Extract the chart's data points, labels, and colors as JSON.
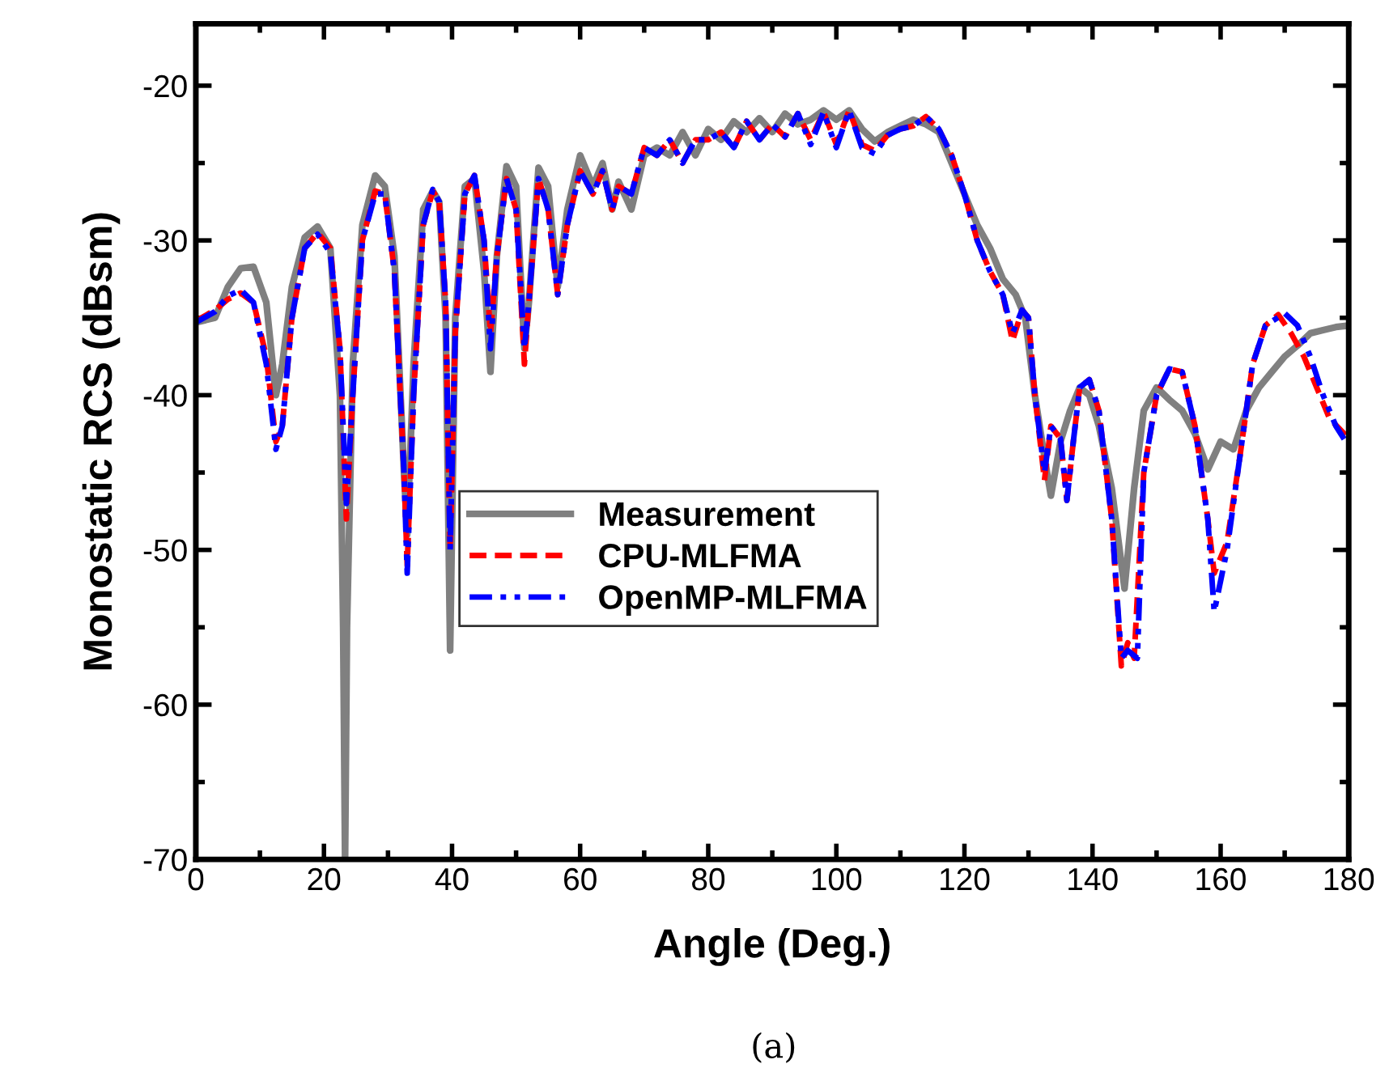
{
  "chart_data": {
    "type": "line",
    "xlabel": "Angle (Deg.)",
    "ylabel": "Monostatic RCS (dBsm)",
    "xlim": [
      0,
      180
    ],
    "xticks": [
      0,
      20,
      40,
      60,
      80,
      100,
      120,
      140,
      160,
      180
    ],
    "ylim": [
      -70,
      -16
    ],
    "yticks": [
      -70,
      -60,
      -50,
      -40,
      -30,
      -20
    ],
    "grid": false,
    "legend": "center",
    "annotations": [
      "(a)"
    ],
    "series": [
      {
        "name": "Measurement",
        "color": "#808080",
        "line_style": "solid",
        "x": [
          0,
          3,
          5,
          7,
          9,
          11,
          12.5,
          13.5,
          15,
          17,
          19,
          21,
          22.5,
          23,
          23.3,
          23.6,
          24.5,
          26,
          28,
          29.5,
          31,
          32.5,
          33,
          34,
          35.5,
          37,
          38,
          39,
          39.7,
          40.5,
          42,
          43.5,
          45,
          46,
          47,
          48.5,
          50,
          51.3,
          52,
          53.5,
          55,
          56.5,
          58,
          60,
          62,
          63.5,
          65,
          66,
          68,
          70,
          72,
          74,
          76,
          78,
          80,
          82,
          84,
          86,
          88,
          90,
          92,
          94,
          96,
          98,
          100,
          102,
          104,
          106,
          108,
          110,
          112,
          114,
          116,
          118,
          120,
          122,
          124,
          126,
          128,
          129.5,
          131,
          132.5,
          133.5,
          135,
          136.5,
          138,
          139.5,
          141,
          143,
          145,
          146.5,
          148,
          150,
          152,
          154,
          156,
          158,
          160,
          162,
          164,
          166,
          168,
          170,
          172,
          174,
          176,
          178,
          180
        ],
        "values": [
          -35.3,
          -35,
          -33,
          -31.8,
          -31.7,
          -34,
          -40,
          -38,
          -33,
          -29.8,
          -29.1,
          -30.5,
          -40,
          -55,
          -70,
          -55,
          -38,
          -29,
          -25.8,
          -26.5,
          -31,
          -45,
          -49,
          -38,
          -28,
          -26.8,
          -27.5,
          -35,
          -56.5,
          -35,
          -26.5,
          -26,
          -32,
          -38.5,
          -31,
          -25.2,
          -26.5,
          -37,
          -34,
          -25.3,
          -26.5,
          -33,
          -28,
          -24.5,
          -26.5,
          -25,
          -28,
          -26.2,
          -28,
          -24.5,
          -24,
          -24.5,
          -23,
          -24.5,
          -22.8,
          -23.5,
          -22.3,
          -23,
          -22.1,
          -23,
          -21.8,
          -22.5,
          -22.2,
          -21.6,
          -22.2,
          -21.6,
          -22.8,
          -23.6,
          -23,
          -22.6,
          -22.2,
          -22.5,
          -23,
          -25,
          -27,
          -29,
          -30.5,
          -32.5,
          -33.5,
          -35,
          -40,
          -44,
          -46.5,
          -43,
          -41,
          -39.5,
          -40,
          -42,
          -46,
          -52.5,
          -46,
          -41,
          -39.5,
          -40.3,
          -41,
          -42.5,
          -44.8,
          -43,
          -43.5,
          -41,
          -39.5,
          -38.5,
          -37.5,
          -36.8,
          -36,
          -35.8,
          -35.6,
          -35.5
        ]
      },
      {
        "name": "CPU-MLFMA",
        "color": "#ff0000",
        "line_style": "dashed",
        "x": [
          0,
          3,
          5,
          7,
          9,
          11,
          12.5,
          13.5,
          15,
          17,
          19,
          21,
          22.5,
          23.5,
          24.5,
          26,
          28,
          29.5,
          31,
          32.5,
          33,
          34,
          35.5,
          37,
          38,
          39,
          39.7,
          40.5,
          42,
          43.5,
          45,
          46,
          47,
          48.5,
          50,
          51.3,
          52,
          53.5,
          55,
          56.5,
          58,
          60,
          62,
          63.5,
          65,
          66,
          68,
          70,
          72,
          74,
          76,
          78,
          80,
          82,
          84,
          86,
          88,
          90,
          92,
          94,
          96,
          98,
          100,
          102,
          104,
          106,
          108,
          110,
          112,
          114,
          116,
          118,
          120,
          122,
          124,
          126,
          127.5,
          129,
          130,
          131,
          132.5,
          133.5,
          135,
          136,
          137,
          138,
          139.5,
          141,
          143,
          144.5,
          145.5,
          146.5,
          148,
          150,
          152,
          154,
          156,
          158,
          159,
          161,
          163,
          165,
          167,
          169,
          171,
          173,
          175,
          177,
          180
        ],
        "values": [
          -35.2,
          -34.5,
          -33.8,
          -33.4,
          -34,
          -37.5,
          -43,
          -42,
          -35,
          -30.5,
          -29.5,
          -30.5,
          -37,
          -48,
          -40,
          -30,
          -26.8,
          -27,
          -32,
          -45,
          -51,
          -40,
          -29,
          -26.8,
          -27.5,
          -34,
          -50,
          -36,
          -27,
          -25.8,
          -30,
          -36,
          -31,
          -26,
          -28,
          -38,
          -34,
          -26,
          -28,
          -33.5,
          -29,
          -25.5,
          -27,
          -25.5,
          -28,
          -26.5,
          -27,
          -24,
          -24.5,
          -23.5,
          -25,
          -23.5,
          -23.5,
          -23,
          -24,
          -22.3,
          -23.5,
          -22.5,
          -23.3,
          -21.8,
          -23.5,
          -21.7,
          -23.8,
          -21.6,
          -23.8,
          -24.2,
          -23.2,
          -22.8,
          -22.6,
          -22,
          -22.8,
          -24.5,
          -27,
          -30,
          -32,
          -33.5,
          -36.5,
          -34.5,
          -35,
          -40,
          -45.5,
          -42,
          -42.8,
          -46.8,
          -43,
          -39.5,
          -39,
          -41,
          -48,
          -57.5,
          -56,
          -57,
          -45,
          -40,
          -38.3,
          -38.5,
          -42,
          -48,
          -51.5,
          -49.5,
          -44,
          -38,
          -35.5,
          -34.8,
          -36,
          -37.5,
          -39.5,
          -41.5,
          -42.8
        ]
      },
      {
        "name": "OpenMP-MLFMA",
        "color": "#0000ff",
        "line_style": "dashdot",
        "x": [
          0,
          3,
          5,
          7,
          9,
          11,
          12.5,
          13.5,
          15,
          17,
          19,
          21,
          22.5,
          23.5,
          24.5,
          26,
          28,
          29.5,
          31,
          32.5,
          33,
          34,
          35.5,
          37,
          38,
          39,
          39.7,
          40.5,
          42,
          43.5,
          45,
          46,
          47,
          48.5,
          50,
          51.3,
          52,
          53.5,
          55,
          56.5,
          58,
          60,
          62,
          63.5,
          65,
          66,
          68,
          70,
          72,
          74,
          76,
          78,
          80,
          82,
          84,
          86,
          88,
          90,
          92,
          94,
          96,
          98,
          100,
          102,
          104,
          106,
          108,
          110,
          112,
          114,
          116,
          118,
          120,
          122,
          124,
          126,
          127.5,
          129,
          130,
          131,
          132.5,
          133.5,
          135,
          136,
          137,
          138,
          139.5,
          141,
          143,
          144.5,
          145.5,
          147,
          148,
          150,
          152,
          154,
          156,
          158,
          159,
          161,
          163,
          165,
          167,
          170,
          172,
          174,
          176,
          178,
          180
        ],
        "values": [
          -35.3,
          -34.6,
          -33.6,
          -33.2,
          -34,
          -38,
          -43.5,
          -42,
          -35,
          -30.5,
          -29.6,
          -30.8,
          -37,
          -47,
          -40,
          -30,
          -27,
          -27,
          -32,
          -45,
          -51.5,
          -40,
          -29,
          -26.7,
          -27.5,
          -34,
          -50,
          -36,
          -27,
          -25.8,
          -30,
          -37,
          -31,
          -26,
          -28,
          -37,
          -34,
          -26,
          -28,
          -33.5,
          -29,
          -25.5,
          -27,
          -25.5,
          -28,
          -26.5,
          -27,
          -24,
          -24.5,
          -23.5,
          -25,
          -23.5,
          -23.5,
          -23,
          -24,
          -22.3,
          -23.5,
          -22.5,
          -23.3,
          -21.8,
          -23.8,
          -21.7,
          -24,
          -21.6,
          -24,
          -24.4,
          -23.2,
          -22.8,
          -22.6,
          -22,
          -22.8,
          -24.5,
          -27,
          -30,
          -32,
          -33.5,
          -36,
          -34.5,
          -35,
          -40,
          -45,
          -42,
          -42.8,
          -46.8,
          -43,
          -39.5,
          -39,
          -41,
          -48,
          -57,
          -56.5,
          -57,
          -45,
          -40,
          -38.3,
          -38.5,
          -42,
          -48,
          -54,
          -50,
          -44,
          -38,
          -35.5,
          -34.7,
          -35.5,
          -37.5,
          -40,
          -42,
          -43.3
        ]
      }
    ]
  }
}
